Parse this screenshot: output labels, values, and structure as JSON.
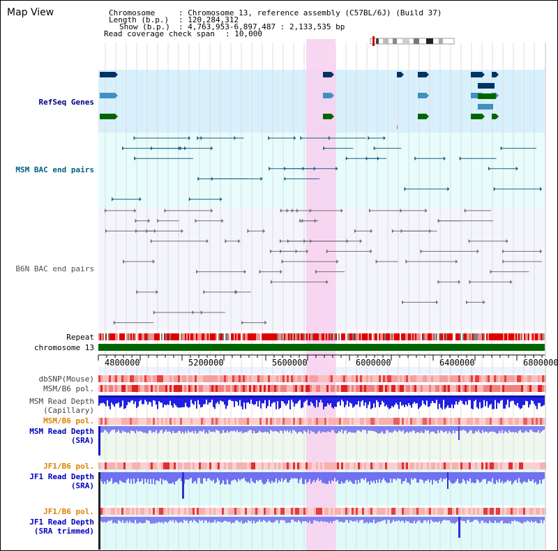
{
  "view_title": "Map View",
  "header": {
    "chromosome_label": "Chromosome",
    "chromosome_value": ": Chromosome 13, reference assembly (C57BL/6J) (Build 37)",
    "length_label": "Length (b.p.)",
    "length_value": ": 120,284,312",
    "show_label": "Show (b.p.)",
    "show_value": ": 4,763,953-6,897,487 : 2,133,535 bp",
    "coverage_label": "Read coverage check span",
    "coverage_value": ": 10,000"
  },
  "tracks": {
    "refseq": "RefSeq Genes",
    "msm_bac": "MSM BAC end pairs",
    "b6n_bac": "B6N BAC end pairs",
    "repeat": "Repeat",
    "chromosome": "chromosome 13",
    "dbsnp": "dbSNP(Mouse)",
    "msm_b6_pol_1": "MSM/B6 pol.",
    "msm_read_depth_cap_1": "MSM Read Depth",
    "msm_read_depth_cap_2": "(Capillary)",
    "msm_b6_pol_2": "MSM/B6 pol.",
    "msm_read_depth_sra_1": "MSM Read Depth",
    "msm_read_depth_sra_2": "(SRA)",
    "jf1_b6_pol_1": "JF1/B6 pol.",
    "jf1_read_depth_sra_1": "JF1 Read Depth",
    "jf1_read_depth_sra_2": "(SRA)",
    "jf1_b6_pol_2": "JF1/B6 pol.",
    "jf1_read_depth_trim_1": "JF1 Read Depth",
    "jf1_read_depth_trim_2": "(SRA trimmed)"
  },
  "axis": {
    "ticks": [
      "4800000",
      "5200000",
      "5600000",
      "6000000",
      "6400000",
      "6800000"
    ]
  },
  "colors": {
    "refseq_label": "#000080",
    "msm_label": "#006080",
    "b6n_label": "#404040",
    "pol_label": "#e08000",
    "depth_label": "#0000c0",
    "highlight": "#f8d0f0",
    "refseq_bg": "#d8f0fc",
    "msm_bg": "#e8fcfc",
    "b6n_bg": "#f4f4fc",
    "chromosome_bar": "#006400"
  }
}
